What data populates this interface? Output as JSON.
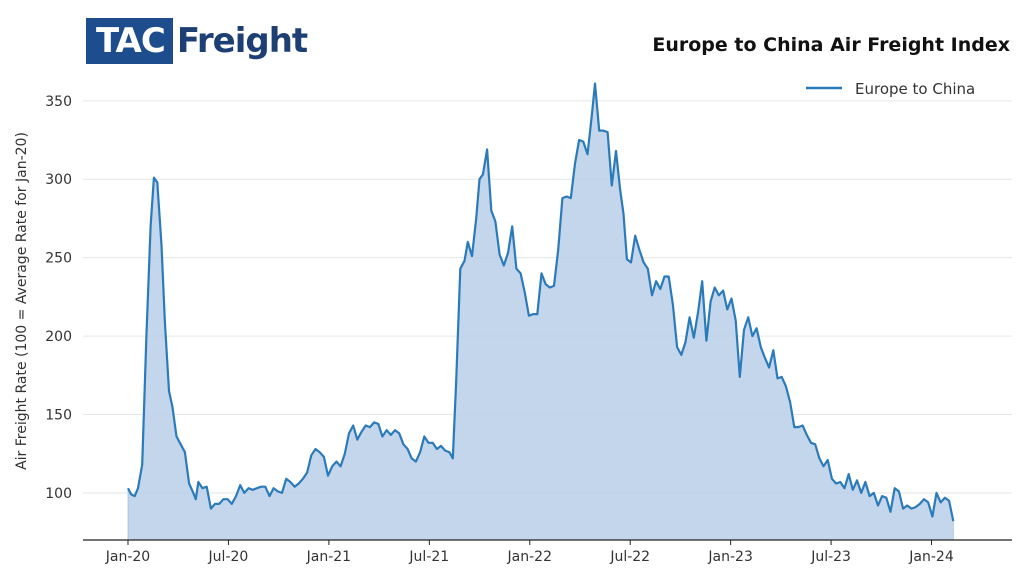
{
  "logo": {
    "part1": "TAC",
    "part2": "Freight"
  },
  "chart_data": {
    "type": "area",
    "title": "Europe to China Air Freight Index",
    "xlabel": "",
    "ylabel": "Air Freight Rate (100 = Average Rate for Jan-20)",
    "x_start": "2020-01",
    "x_end": "2024-01",
    "ylim": [
      70,
      362
    ],
    "yticks": [
      100,
      150,
      200,
      250,
      300,
      350
    ],
    "xticks": [
      {
        "label": "Jan-20",
        "month": 0
      },
      {
        "label": "Jul-20",
        "month": 6
      },
      {
        "label": "Jan-21",
        "month": 12
      },
      {
        "label": "Jul-21",
        "month": 18
      },
      {
        "label": "Jan-22",
        "month": 24
      },
      {
        "label": "Jul-22",
        "month": 30
      },
      {
        "label": "Jan-23",
        "month": 36
      },
      {
        "label": "Jul-23",
        "month": 42
      },
      {
        "label": "Jan-24",
        "month": 48
      }
    ],
    "grid": true,
    "legend": "top-right",
    "line_color": "#2b7bba",
    "fill_color": "#b9cfe8",
    "series": [
      {
        "name": "Europe to China",
        "points": [
          [
            0.0,
            103
          ],
          [
            0.2,
            99
          ],
          [
            0.4,
            98
          ],
          [
            0.6,
            103
          ],
          [
            0.85,
            118
          ],
          [
            1.1,
            200
          ],
          [
            1.35,
            270
          ],
          [
            1.55,
            301
          ],
          [
            1.75,
            298
          ],
          [
            2.0,
            258
          ],
          [
            2.2,
            210
          ],
          [
            2.45,
            165
          ],
          [
            2.65,
            155
          ],
          [
            2.9,
            136
          ],
          [
            3.1,
            132
          ],
          [
            3.4,
            126
          ],
          [
            3.65,
            106
          ],
          [
            3.9,
            100
          ],
          [
            4.05,
            96
          ],
          [
            4.2,
            107
          ],
          [
            4.45,
            103
          ],
          [
            4.7,
            104
          ],
          [
            4.95,
            90
          ],
          [
            5.2,
            93
          ],
          [
            5.45,
            93
          ],
          [
            5.7,
            96
          ],
          [
            5.95,
            96
          ],
          [
            6.2,
            93
          ],
          [
            6.45,
            98
          ],
          [
            6.7,
            105
          ],
          [
            6.95,
            100
          ],
          [
            7.2,
            103
          ],
          [
            7.45,
            102
          ],
          [
            7.7,
            103
          ],
          [
            7.95,
            104
          ],
          [
            8.2,
            104
          ],
          [
            8.45,
            98
          ],
          [
            8.7,
            103
          ],
          [
            8.95,
            101
          ],
          [
            9.2,
            100
          ],
          [
            9.45,
            109
          ],
          [
            9.7,
            107
          ],
          [
            9.95,
            104
          ],
          [
            10.2,
            106
          ],
          [
            10.45,
            109
          ],
          [
            10.7,
            113
          ],
          [
            10.95,
            124
          ],
          [
            11.2,
            128
          ],
          [
            11.45,
            126
          ],
          [
            11.7,
            123
          ],
          [
            11.95,
            111
          ],
          [
            12.2,
            117
          ],
          [
            12.45,
            120
          ],
          [
            12.7,
            117
          ],
          [
            12.95,
            125
          ],
          [
            13.2,
            138
          ],
          [
            13.45,
            143
          ],
          [
            13.7,
            134
          ],
          [
            13.95,
            139
          ],
          [
            14.2,
            143
          ],
          [
            14.45,
            142
          ],
          [
            14.7,
            145
          ],
          [
            14.95,
            144
          ],
          [
            15.2,
            136
          ],
          [
            15.45,
            140
          ],
          [
            15.7,
            137
          ],
          [
            15.95,
            140
          ],
          [
            16.2,
            138
          ],
          [
            16.45,
            131
          ],
          [
            16.7,
            128
          ],
          [
            16.95,
            122
          ],
          [
            17.2,
            120
          ],
          [
            17.45,
            126
          ],
          [
            17.7,
            136
          ],
          [
            17.95,
            132
          ],
          [
            18.2,
            132
          ],
          [
            18.45,
            128
          ],
          [
            18.7,
            130
          ],
          [
            18.95,
            127
          ],
          [
            19.2,
            126
          ],
          [
            19.4,
            122
          ],
          [
            19.6,
            170
          ],
          [
            19.85,
            243
          ],
          [
            20.1,
            248
          ],
          [
            20.3,
            260
          ],
          [
            20.55,
            251
          ],
          [
            20.8,
            275
          ],
          [
            21.0,
            300
          ],
          [
            21.2,
            303
          ],
          [
            21.45,
            319
          ],
          [
            21.7,
            280
          ],
          [
            21.95,
            273
          ],
          [
            22.2,
            252
          ],
          [
            22.45,
            245
          ],
          [
            22.7,
            253
          ],
          [
            22.95,
            270
          ],
          [
            23.2,
            243
          ],
          [
            23.45,
            240
          ],
          [
            23.7,
            228
          ],
          [
            23.95,
            213
          ],
          [
            24.2,
            214
          ],
          [
            24.45,
            214
          ],
          [
            24.7,
            240
          ],
          [
            24.95,
            233
          ],
          [
            25.2,
            231
          ],
          [
            25.45,
            232
          ],
          [
            25.7,
            255
          ],
          [
            25.95,
            288
          ],
          [
            26.2,
            289
          ],
          [
            26.45,
            288
          ],
          [
            26.7,
            310
          ],
          [
            26.95,
            325
          ],
          [
            27.2,
            324
          ],
          [
            27.45,
            316
          ],
          [
            27.7,
            340
          ],
          [
            27.9,
            361
          ],
          [
            28.15,
            331
          ],
          [
            28.4,
            331
          ],
          [
            28.65,
            330
          ],
          [
            28.9,
            296
          ],
          [
            29.15,
            318
          ],
          [
            29.4,
            293
          ],
          [
            29.6,
            278
          ],
          [
            29.8,
            249
          ],
          [
            30.05,
            247
          ],
          [
            30.3,
            264
          ],
          [
            30.55,
            255
          ],
          [
            30.8,
            247
          ],
          [
            31.05,
            243
          ],
          [
            31.3,
            226
          ],
          [
            31.55,
            235
          ],
          [
            31.8,
            230
          ],
          [
            32.05,
            238
          ],
          [
            32.3,
            238
          ],
          [
            32.55,
            220
          ],
          [
            32.8,
            193
          ],
          [
            33.05,
            188
          ],
          [
            33.3,
            196
          ],
          [
            33.55,
            212
          ],
          [
            33.8,
            199
          ],
          [
            34.05,
            215
          ],
          [
            34.3,
            235
          ],
          [
            34.55,
            197
          ],
          [
            34.8,
            222
          ],
          [
            35.05,
            231
          ],
          [
            35.3,
            226
          ],
          [
            35.55,
            229
          ],
          [
            35.8,
            217
          ],
          [
            36.05,
            224
          ],
          [
            36.3,
            210
          ],
          [
            36.55,
            174
          ],
          [
            36.8,
            204
          ],
          [
            37.05,
            212
          ],
          [
            37.3,
            200
          ],
          [
            37.55,
            205
          ],
          [
            37.8,
            193
          ],
          [
            38.05,
            186
          ],
          [
            38.3,
            180
          ],
          [
            38.55,
            191
          ],
          [
            38.8,
            173
          ],
          [
            39.05,
            174
          ],
          [
            39.3,
            168
          ],
          [
            39.55,
            158
          ],
          [
            39.8,
            142
          ],
          [
            40.05,
            142
          ],
          [
            40.3,
            143
          ],
          [
            40.55,
            137
          ],
          [
            40.8,
            132
          ],
          [
            41.05,
            131
          ],
          [
            41.3,
            122
          ],
          [
            41.55,
            117
          ],
          [
            41.8,
            121
          ],
          [
            42.05,
            109
          ],
          [
            42.3,
            106
          ],
          [
            42.55,
            107
          ],
          [
            42.8,
            103
          ],
          [
            43.05,
            112
          ],
          [
            43.3,
            102
          ],
          [
            43.55,
            108
          ],
          [
            43.8,
            100
          ],
          [
            44.05,
            107
          ],
          [
            44.3,
            98
          ],
          [
            44.55,
            100
          ],
          [
            44.8,
            92
          ],
          [
            45.05,
            98
          ],
          [
            45.3,
            97
          ],
          [
            45.55,
            88
          ],
          [
            45.8,
            103
          ],
          [
            46.05,
            101
          ],
          [
            46.3,
            90
          ],
          [
            46.55,
            92
          ],
          [
            46.8,
            90
          ],
          [
            47.05,
            91
          ],
          [
            47.3,
            93
          ],
          [
            47.55,
            96
          ],
          [
            47.8,
            94
          ],
          [
            48.05,
            85
          ],
          [
            48.3,
            100
          ],
          [
            48.55,
            94
          ],
          [
            48.8,
            97
          ],
          [
            49.05,
            95
          ],
          [
            49.3,
            82
          ]
        ]
      }
    ]
  }
}
